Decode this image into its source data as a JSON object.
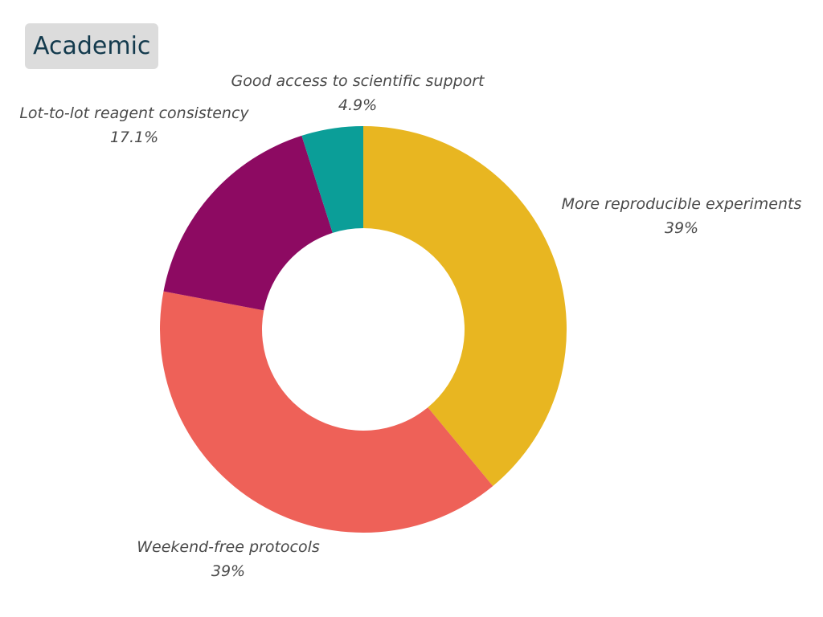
{
  "chart_data": {
    "type": "pie",
    "variant": "donut",
    "title": "Academic",
    "categories": [
      "More reproducible experiments",
      "Weekend-free protocols",
      "Lot-to-lot reagent consistency",
      "Good access to scientific support"
    ],
    "values": [
      39,
      39,
      17.1,
      4.9
    ],
    "value_labels": [
      "39%",
      "39%",
      "17.1%",
      "4.9%"
    ],
    "colors": [
      "#e8b621",
      "#ee6158",
      "#8d0a62",
      "#0b9e98"
    ],
    "start": "12 o'clock",
    "direction": "clockwise",
    "legend": "none"
  }
}
